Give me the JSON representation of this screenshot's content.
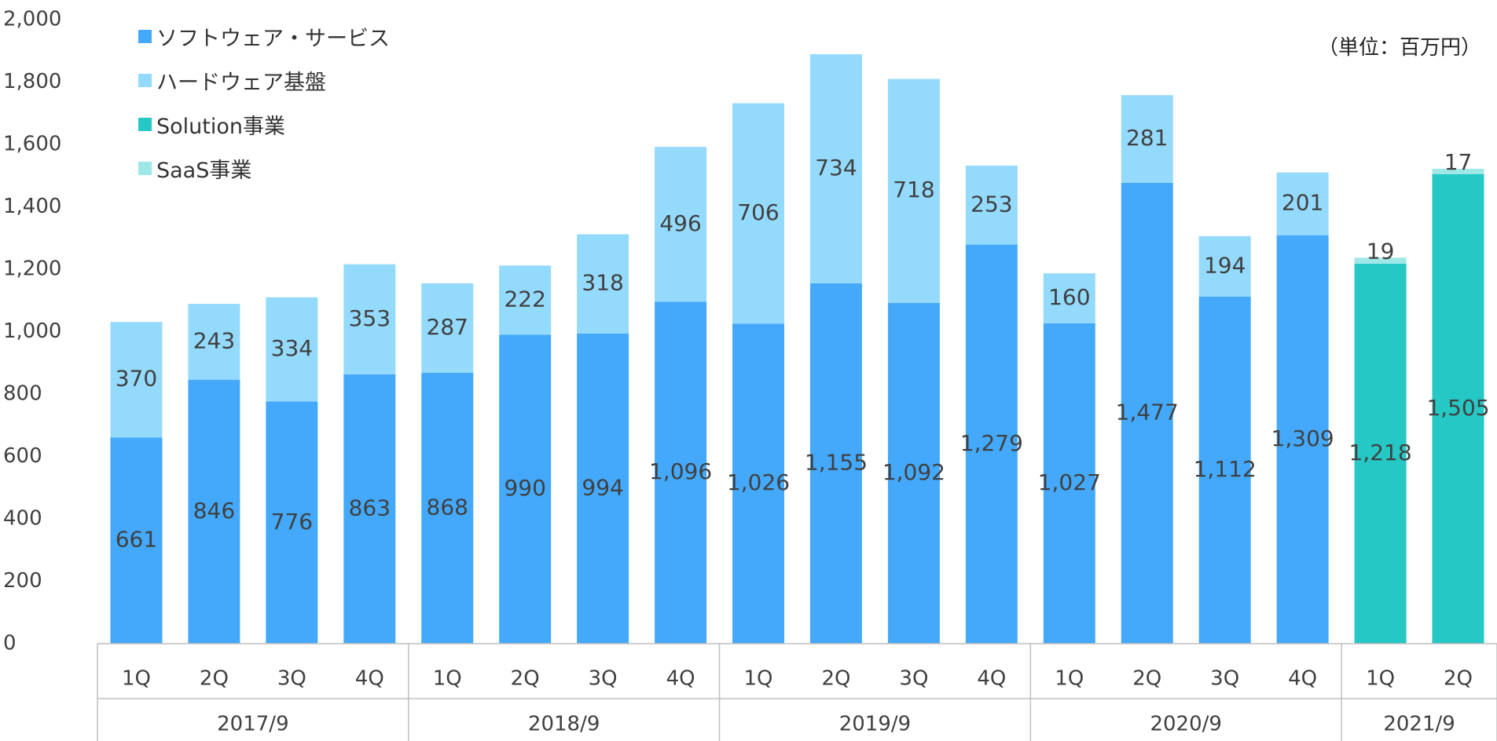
{
  "unit_label": "（単位：百万円）",
  "colors": {
    "software": "#44A9FB",
    "hardware": "#94DAFD",
    "solution": "#25C8C4",
    "saas": "#9EE8E8",
    "axis": "#BFBFBF",
    "text": "#404040"
  },
  "chart_data": {
    "type": "bar",
    "stacked": true,
    "ylim": [
      0,
      2000
    ],
    "yticks": [
      "0",
      "200",
      "400",
      "600",
      "800",
      "1,000",
      "1,200",
      "1,400",
      "1,600",
      "1,800",
      "2,000"
    ],
    "categories": [
      "1Q",
      "2Q",
      "3Q",
      "4Q",
      "1Q",
      "2Q",
      "3Q",
      "4Q",
      "1Q",
      "2Q",
      "3Q",
      "4Q",
      "1Q",
      "2Q",
      "3Q",
      "4Q",
      "1Q",
      "2Q"
    ],
    "year_groups": [
      {
        "label": "2017/9",
        "count": 4
      },
      {
        "label": "2018/9",
        "count": 4
      },
      {
        "label": "2019/9",
        "count": 4
      },
      {
        "label": "2020/9",
        "count": 4
      },
      {
        "label": "2021/9",
        "count": 2
      }
    ],
    "series": [
      {
        "name": "ソフトウェア・サービス",
        "color": "#44A9FB",
        "values": [
          661,
          846,
          776,
          863,
          868,
          990,
          994,
          1096,
          1026,
          1155,
          1092,
          1279,
          1027,
          1477,
          1112,
          1309,
          null,
          null
        ],
        "labels": [
          "661",
          "846",
          "776",
          "863",
          "868",
          "990",
          "994",
          "1,096",
          "1,026",
          "1,155",
          "1,092",
          "1,279",
          "1,027",
          "1,477",
          "1,112",
          "1,309",
          "",
          ""
        ]
      },
      {
        "name": "ハードウェア基盤",
        "color": "#94DAFD",
        "values": [
          370,
          243,
          334,
          353,
          287,
          222,
          318,
          496,
          706,
          734,
          718,
          253,
          160,
          281,
          194,
          201,
          null,
          null
        ],
        "labels": [
          "370",
          "243",
          "334",
          "353",
          "287",
          "222",
          "318",
          "496",
          "706",
          "734",
          "718",
          "253",
          "160",
          "281",
          "194",
          "201",
          "",
          ""
        ]
      },
      {
        "name": "Solution事業",
        "color": "#25C8C4",
        "values": [
          null,
          null,
          null,
          null,
          null,
          null,
          null,
          null,
          null,
          null,
          null,
          null,
          null,
          null,
          null,
          null,
          1218,
          1505
        ],
        "labels": [
          "",
          "",
          "",
          "",
          "",
          "",
          "",
          "",
          "",
          "",
          "",
          "",
          "",
          "",
          "",
          "",
          "1,218",
          "1,505"
        ]
      },
      {
        "name": "SaaS事業",
        "color": "#9EE8E8",
        "values": [
          null,
          null,
          null,
          null,
          null,
          null,
          null,
          null,
          null,
          null,
          null,
          null,
          null,
          null,
          null,
          null,
          19,
          17
        ],
        "labels": [
          "",
          "",
          "",
          "",
          "",
          "",
          "",
          "",
          "",
          "",
          "",
          "",
          "",
          "",
          "",
          "",
          "19",
          "17"
        ]
      }
    ]
  }
}
